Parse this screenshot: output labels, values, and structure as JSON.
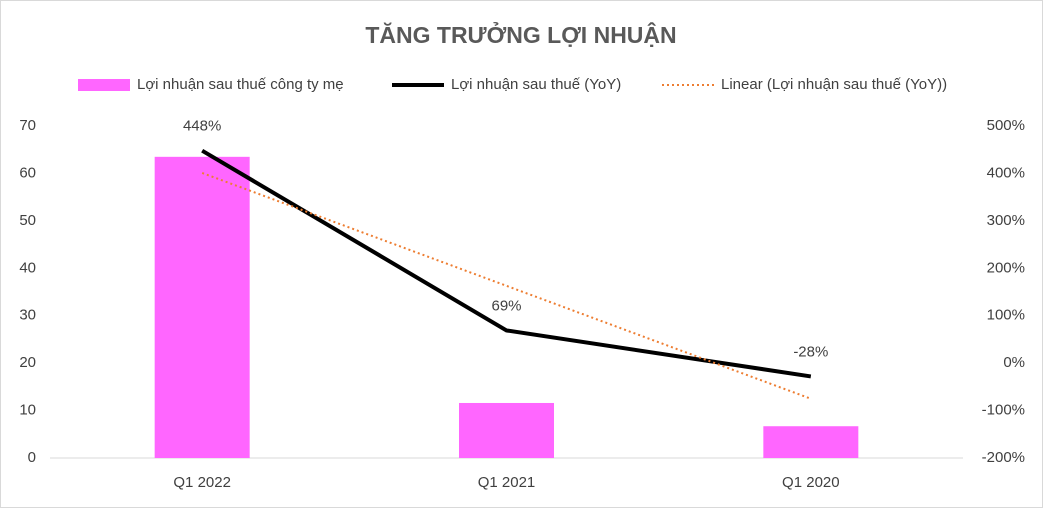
{
  "chart_data": {
    "type": "combo",
    "title": "TĂNG TRƯỞNG LỢI NHUẬN",
    "categories": [
      "Q1 2022",
      "Q1 2021",
      "Q1 2020"
    ],
    "series": [
      {
        "name": "Lợi nhuận sau thuế công ty mẹ",
        "type": "bar",
        "color": "#ff66ff",
        "values": [
          63.5,
          11.6,
          6.7
        ]
      },
      {
        "name": "Lợi nhuận sau thuế (YoY)",
        "type": "line",
        "axis": "y2",
        "color": "#000000",
        "values": [
          448,
          69,
          -28
        ],
        "value_labels": [
          "448%",
          "69%",
          "-28%"
        ]
      },
      {
        "name": "Linear (Lợi nhuận sau thuế (YoY))",
        "type": "line",
        "axis": "y2",
        "style": "dotted",
        "color": "#ed7d31",
        "values": [
          401,
          163,
          -75
        ]
      }
    ],
    "ylim": [
      0,
      70
    ],
    "yticks": [
      0,
      10,
      20,
      30,
      40,
      50,
      60,
      70
    ],
    "y2lim": [
      -200,
      500
    ],
    "y2ticks": [
      {
        "value": -200,
        "label": "-200%"
      },
      {
        "value": -100,
        "label": "-100%"
      },
      {
        "value": 0,
        "label": "0%"
      },
      {
        "value": 100,
        "label": "100%"
      },
      {
        "value": 200,
        "label": "200%"
      },
      {
        "value": 300,
        "label": "300%"
      },
      {
        "value": 400,
        "label": "400%"
      },
      {
        "value": 500,
        "label": "500%"
      }
    ],
    "legend": "top",
    "grid": false
  }
}
